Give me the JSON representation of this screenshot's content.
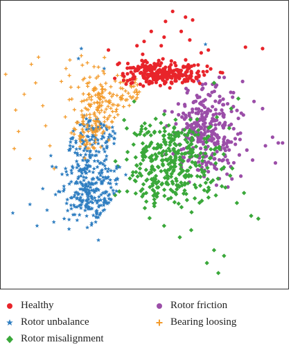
{
  "chart_data": {
    "type": "scatter",
    "title": "",
    "xlabel": "",
    "ylabel": "",
    "xlim": [
      -10,
      10
    ],
    "ylim": [
      -10,
      10
    ],
    "grid": false,
    "ticks": "none",
    "legend_position": "bottom",
    "series": [
      {
        "name": "Healthy",
        "marker": "circle",
        "color": "#e8242a",
        "cluster": {
          "center": [
            1.3,
            5.0
          ],
          "spread": [
            2.2,
            0.6
          ],
          "count": 260
        },
        "outliers": [
          [
            2.0,
            9.3
          ],
          [
            2.9,
            8.9
          ],
          [
            1.5,
            8.6
          ],
          [
            3.4,
            8.7
          ],
          [
            0.5,
            7.9
          ],
          [
            -0.5,
            6.9
          ],
          [
            1.4,
            7.5
          ],
          [
            2.6,
            7.9
          ],
          [
            4.0,
            6.4
          ],
          [
            -2.5,
            6.6
          ],
          [
            0.0,
            7.2
          ],
          [
            1.2,
            6.9
          ],
          [
            7.1,
            6.8
          ],
          [
            8.3,
            6.7
          ],
          [
            3.2,
            7.3
          ],
          [
            4.5,
            6.6
          ],
          [
            -0.1,
            6.3
          ]
        ]
      },
      {
        "name": "Rotor unbalance",
        "marker": "star",
        "color": "#2f7ec1",
        "cluster": {
          "center": [
            -3.0,
            -1.2
          ],
          "spread": [
            1.5,
            2.8
          ],
          "count": 380
        },
        "outliers": [
          [
            -4.4,
            6.7
          ],
          [
            -4.6,
            6.0
          ],
          [
            -8.0,
            -4.2
          ],
          [
            -9.2,
            -4.8
          ],
          [
            -6.0,
            -3.3
          ],
          [
            -7.5,
            -5.7
          ],
          [
            -5.1,
            -4.5
          ],
          [
            -6.8,
            -4.6
          ],
          [
            -3.2,
            -6.7
          ],
          [
            -5.6,
            -5.2
          ],
          [
            -4.5,
            -3.9
          ],
          [
            -7.1,
            -3.1
          ],
          [
            4.3,
            7.0
          ],
          [
            -2.8,
            5.3
          ]
        ]
      },
      {
        "name": "Rotor misalignment",
        "marker": "diamond",
        "color": "#3aa83a",
        "cluster": {
          "center": [
            2.0,
            -1.4
          ],
          "spread": [
            2.3,
            2.3
          ],
          "count": 360
        },
        "outliers": [
          [
            4.4,
            -8.3
          ],
          [
            5.2,
            -9.0
          ],
          [
            5.6,
            -7.8
          ],
          [
            6.5,
            -4.1
          ],
          [
            7.5,
            -5.0
          ],
          [
            8.0,
            -5.2
          ],
          [
            4.9,
            -7.4
          ],
          [
            2.5,
            -6.5
          ],
          [
            3.3,
            -6.0
          ],
          [
            1.4,
            -5.7
          ],
          [
            6.6,
            3.2
          ],
          [
            6.1,
            2.5
          ],
          [
            4.9,
            4.3
          ],
          [
            5.1,
            1.9
          ],
          [
            -0.7,
            3.0
          ],
          [
            1.4,
            2.1
          ],
          [
            7.0,
            -3.4
          ],
          [
            -1.4,
            1.7
          ]
        ]
      },
      {
        "name": "Rotor friction",
        "marker": "circle",
        "color": "#9b4ea8",
        "cluster": {
          "center": [
            4.4,
            0.9
          ],
          "spread": [
            1.6,
            2.2
          ],
          "count": 300
        },
        "outliers": [
          [
            8.3,
            2.5
          ],
          [
            9.0,
            0.5
          ],
          [
            9.7,
            0.1
          ],
          [
            9.2,
            -1.3
          ],
          [
            7.2,
            -0.4
          ],
          [
            8.5,
            -0.1
          ],
          [
            7.6,
            -1.1
          ],
          [
            6.2,
            3.3
          ],
          [
            6.9,
            4.4
          ],
          [
            7.7,
            3.0
          ],
          [
            9.4,
            0.1
          ],
          [
            6.1,
            1.4
          ]
        ]
      },
      {
        "name": "Bearing loosing",
        "marker": "plus",
        "color": "#f39a2a",
        "cluster": {
          "center": [
            -3.5,
            2.6
          ],
          "spread": [
            0.8,
            1.6
          ],
          "count": 230
        },
        "outliers": [
          [
            -9.7,
            4.9
          ],
          [
            -7.9,
            5.6
          ],
          [
            -8.4,
            3.5
          ],
          [
            -8.8,
            0.9
          ],
          [
            -9.1,
            -0.3
          ],
          [
            -7.1,
            2.7
          ],
          [
            -5.8,
            4.4
          ],
          [
            -6.9,
            1.3
          ],
          [
            -5.2,
            5.9
          ],
          [
            -6.6,
            -0.1
          ],
          [
            -9.0,
            2.4
          ],
          [
            -7.4,
            6.1
          ],
          [
            -5.1,
            0.8
          ],
          [
            -6.3,
            -1.7
          ],
          [
            -4.4,
            6.2
          ],
          [
            -8.0,
            -1.0
          ],
          [
            -7.6,
            4.3
          ]
        ]
      }
    ]
  }
}
